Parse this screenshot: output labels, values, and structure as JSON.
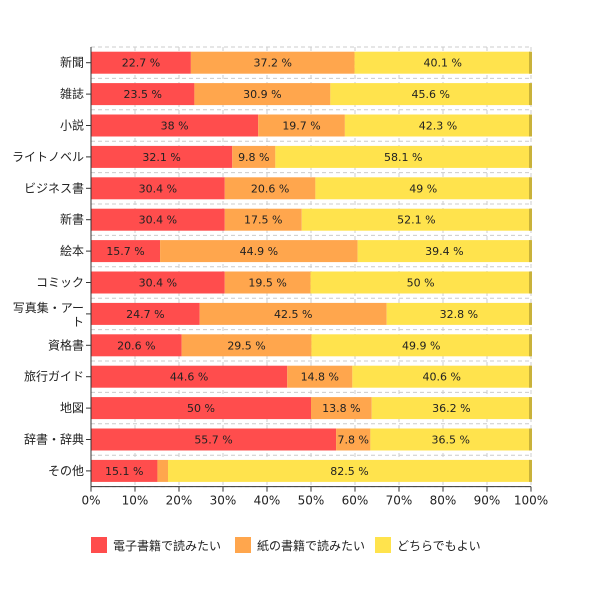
{
  "chart_data": {
    "type": "bar",
    "orientation": "horizontal",
    "stacked": true,
    "xlim": [
      0,
      100
    ],
    "xticks": [
      "0%",
      "10%",
      "20%",
      "30%",
      "40%",
      "50%",
      "60%",
      "70%",
      "80%",
      "90%",
      "100%"
    ],
    "categories": [
      "新聞",
      "雑誌",
      "小説",
      "ライトノベル",
      "ビジネス書",
      "新書",
      "絵本",
      "コミック",
      "写真集・アート",
      "資格書",
      "旅行ガイド",
      "地図",
      "辞書・辞典",
      "その他"
    ],
    "series": [
      {
        "name": "電子書籍で読みたい",
        "color": "#ff4d4d",
        "values": [
          22.7,
          23.5,
          38,
          32.1,
          30.4,
          30.4,
          15.7,
          30.4,
          24.7,
          20.6,
          44.6,
          50,
          55.7,
          15.1
        ],
        "labels": [
          "22.7 %",
          "23.5 %",
          "38 %",
          "32.1 %",
          "30.4 %",
          "30.4 %",
          "15.7 %",
          "30.4 %",
          "24.7 %",
          "20.6 %",
          "44.6 %",
          "50 %",
          "55.7 %",
          "15.1 %"
        ]
      },
      {
        "name": "紙の書籍で読みたい",
        "color": "#ffa64d",
        "values": [
          37.2,
          30.9,
          19.7,
          9.8,
          20.6,
          17.5,
          44.9,
          19.5,
          42.5,
          29.5,
          14.8,
          13.8,
          7.8,
          2.4
        ],
        "labels": [
          "37.2 %",
          "30.9 %",
          "19.7 %",
          "9.8 %",
          "20.6 %",
          "17.5 %",
          "44.9 %",
          "19.5 %",
          "42.5 %",
          "29.5 %",
          "14.8 %",
          "13.8 %",
          "7.8 %",
          ""
        ]
      },
      {
        "name": "どちらでもよい",
        "color": "#ffe34d",
        "values": [
          40.1,
          45.6,
          42.3,
          58.1,
          49,
          52.1,
          39.4,
          50,
          32.8,
          49.9,
          40.6,
          36.2,
          36.5,
          82.5
        ],
        "labels": [
          "40.1 %",
          "45.6 %",
          "42.3 %",
          "58.1 %",
          "49 %",
          "52.1 %",
          "39.4 %",
          "50 %",
          "32.8 %",
          "49.9 %",
          "40.6 %",
          "36.2 %",
          "36.5 %",
          "82.5 %"
        ]
      }
    ],
    "grid": true,
    "legend_position": "bottom"
  }
}
